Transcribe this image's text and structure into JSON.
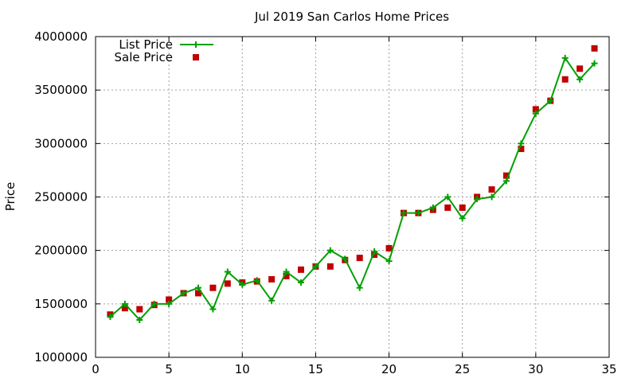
{
  "chart_data": {
    "type": "line",
    "title": "Jul 2019 San Carlos Home Prices",
    "xlabel": "",
    "ylabel": "Price",
    "xlim": [
      0,
      35
    ],
    "ylim": [
      1000000,
      4000000
    ],
    "x_ticks": [
      0,
      5,
      10,
      15,
      20,
      25,
      30,
      35
    ],
    "y_ticks": [
      1000000,
      1500000,
      2000000,
      2500000,
      3000000,
      3500000,
      4000000
    ],
    "grid": true,
    "legend_position": "top-left",
    "x": [
      1,
      2,
      3,
      4,
      5,
      6,
      7,
      8,
      9,
      10,
      11,
      12,
      13,
      14,
      15,
      16,
      17,
      18,
      19,
      20,
      21,
      22,
      23,
      24,
      25,
      26,
      27,
      28,
      29,
      30,
      31,
      32,
      33,
      34
    ],
    "series": [
      {
        "name": "List Price",
        "style": "line+cross",
        "color": "#00a000",
        "values": [
          1380000,
          1500000,
          1350000,
          1500000,
          1500000,
          1600000,
          1650000,
          1450000,
          1800000,
          1680000,
          1720000,
          1530000,
          1800000,
          1700000,
          1850000,
          2000000,
          1920000,
          1650000,
          1990000,
          1900000,
          2350000,
          2350000,
          2400000,
          2500000,
          2300000,
          2480000,
          2500000,
          2650000,
          3000000,
          3280000,
          3400000,
          3800000,
          3600000,
          3750000
        ]
      },
      {
        "name": "Sale Price",
        "style": "square",
        "color": "#c00000",
        "values": [
          1400000,
          1460000,
          1450000,
          1490000,
          1540000,
          1600000,
          1600000,
          1650000,
          1690000,
          1700000,
          1710000,
          1730000,
          1760000,
          1820000,
          1850000,
          1850000,
          1910000,
          1930000,
          1960000,
          2020000,
          2350000,
          2350000,
          2380000,
          2400000,
          2400000,
          2500000,
          2570000,
          2700000,
          2950000,
          3320000,
          3400000,
          3600000,
          3700000,
          3890000
        ]
      }
    ]
  }
}
